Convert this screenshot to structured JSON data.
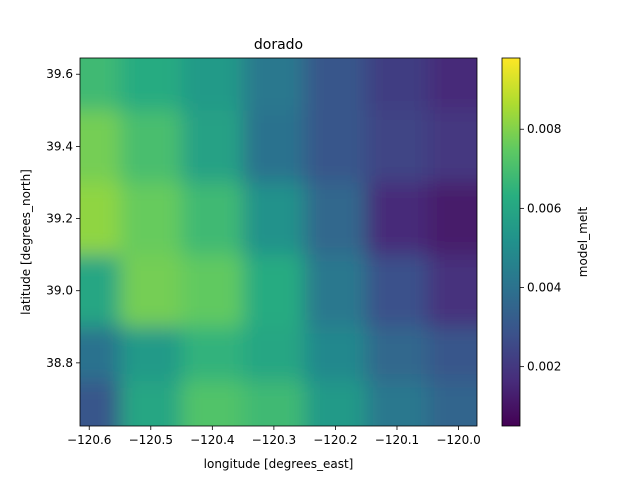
{
  "chart_data": {
    "type": "heatmap",
    "title": "dorado",
    "xlabel": "longitude [degrees_east]",
    "ylabel": "latitude [degrees_north]",
    "xlim": [
      -120.615,
      -119.97
    ],
    "ylim": [
      38.625,
      39.645
    ],
    "x_ticks": [
      -120.6,
      -120.5,
      -120.4,
      -120.3,
      -120.2,
      -120.1,
      -120.0
    ],
    "x_tick_labels": [
      "−120.6",
      "−120.5",
      "−120.4",
      "−120.3",
      "−120.2",
      "−120.1",
      "−120.0"
    ],
    "y_ticks": [
      38.8,
      39.0,
      39.2,
      39.4,
      39.6
    ],
    "y_tick_labels": [
      "38.8",
      "39.0",
      "39.2",
      "39.4",
      "39.6"
    ],
    "colorbar": {
      "label": "model_melt",
      "colormap": "viridis",
      "range": [
        0.0005,
        0.0098
      ],
      "ticks": [
        0.002,
        0.004,
        0.006,
        0.008
      ],
      "tick_labels": [
        "0.002",
        "0.004",
        "0.006",
        "0.008"
      ]
    },
    "value_rows_lat": [
      39.6,
      39.4,
      39.2,
      39.0,
      38.8,
      38.7
    ],
    "value_cols_lon": [
      -120.6,
      -120.5,
      -120.4,
      -120.3,
      -120.2,
      -120.1,
      -120.0
    ],
    "values": [
      [
        0.0068,
        0.0062,
        0.0055,
        0.0042,
        0.003,
        0.0022,
        0.0016
      ],
      [
        0.0078,
        0.007,
        0.0058,
        0.004,
        0.003,
        0.0024,
        0.002
      ],
      [
        0.0082,
        0.0076,
        0.0068,
        0.0052,
        0.0036,
        0.0016,
        0.0012
      ],
      [
        0.006,
        0.0078,
        0.0075,
        0.0062,
        0.0042,
        0.0028,
        0.0018
      ],
      [
        0.004,
        0.0055,
        0.0065,
        0.006,
        0.0048,
        0.0036,
        0.003
      ],
      [
        0.003,
        0.006,
        0.0072,
        0.0068,
        0.0055,
        0.0042,
        0.0035
      ]
    ]
  }
}
